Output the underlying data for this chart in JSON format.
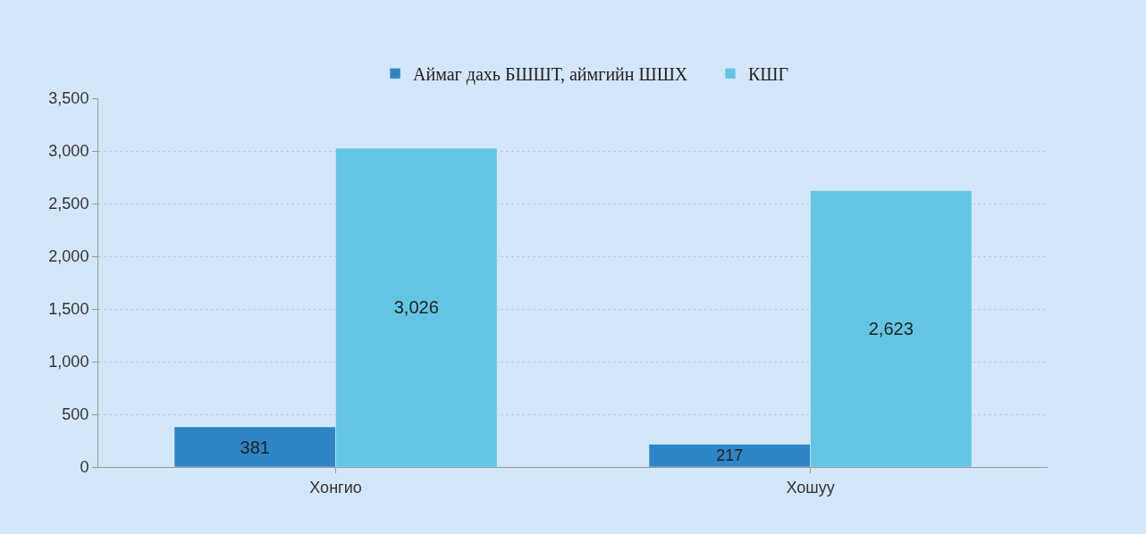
{
  "chart_data": {
    "type": "bar",
    "categories": [
      "Хонгио",
      "Хошуу"
    ],
    "series": [
      {
        "name": "Аймаг дахь БШШТ, аймгийн ШШХ",
        "color": "#2e85c6",
        "values": [
          381,
          217
        ],
        "value_labels": [
          "381",
          "217"
        ]
      },
      {
        "name": "КШГ",
        "color": "#63c5e3",
        "values": [
          3026,
          2623
        ],
        "value_labels": [
          "3,026",
          "2,623"
        ]
      }
    ],
    "ylim": [
      0,
      3500
    ],
    "yticks": [
      0,
      {
        "value": 500,
        "label": "500"
      },
      {
        "value": 1000,
        "label": "1,000"
      },
      {
        "value": 1500,
        "label": "1,500"
      },
      {
        "value": 2000,
        "label": "2,000"
      },
      {
        "value": 2500,
        "label": "2,500"
      },
      {
        "value": 3000,
        "label": "3,000"
      },
      {
        "value": 3500,
        "label": "3,500"
      }
    ],
    "grid": "y",
    "legend": "top right"
  }
}
